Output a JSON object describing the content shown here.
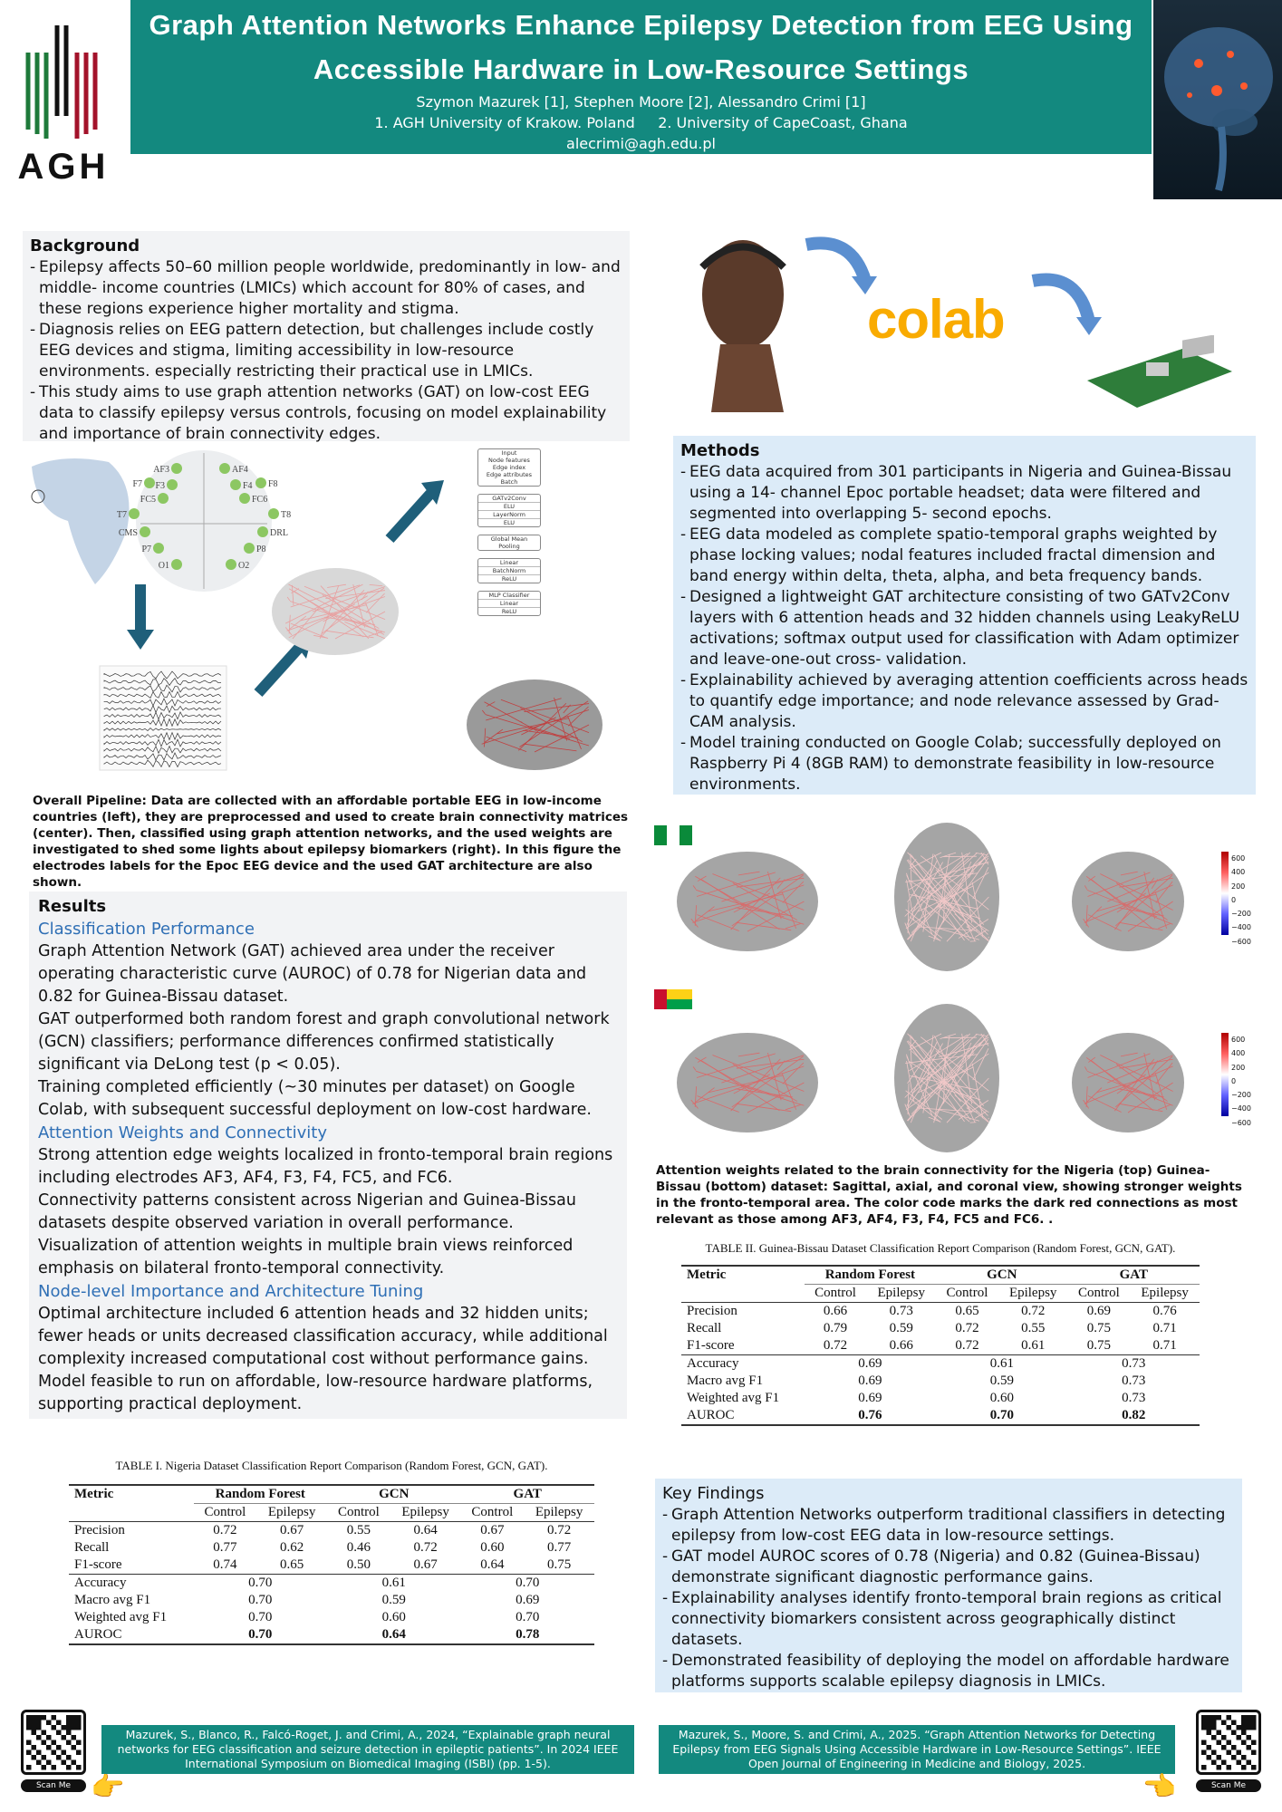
{
  "header": {
    "logo_text": "AGH",
    "title": "Graph Attention Networks Enhance Epilepsy Detection from EEG Using Accessible Hardware in Low-Resource Settings",
    "authors": "Szymon Mazurek [1], Stephen Moore [2], Alessandro Crimi [1]",
    "affiliation_1": "1. AGH University of Krakow. Poland",
    "affiliation_2": "2. University of CapeCoast, Ghana",
    "email": "alecrimi@agh.edu.pl",
    "accent_color": "#13897f"
  },
  "background": {
    "heading": "Background",
    "items": [
      "Epilepsy affects 50–60 million people worldwide, predominantly in low- and middle- income countries (LMICs) which account for 80% of cases, and these regions experience higher mortality and stigma.",
      "Diagnosis relies on EEG pattern detection, but challenges include costly EEG devices and stigma, limiting accessibility in low-resource environments. especially restricting their practical use in LMICs.",
      "This study aims to use graph attention networks (GAT) on low-cost EEG data to classify epilepsy versus controls, focusing on model explainability and importance of brain connectivity edges."
    ]
  },
  "pipeline": {
    "electrodes": [
      "AF3",
      "AF4",
      "F7",
      "F3",
      "F4",
      "F8",
      "FC5",
      "FC6",
      "T7",
      "T8",
      "CMS",
      "DRL",
      "P7",
      "P8",
      "O1",
      "O2"
    ],
    "architecture": [
      "Input",
      "Node features",
      "Edge index",
      "Edge attributes",
      "Batch",
      "GATv2Conv",
      "ELU",
      "LayerNorm",
      "ELU",
      "Global Mean",
      "Pooling",
      "Linear",
      "BatchNorm",
      "ReLU",
      "MLP Classifier",
      "Linear",
      "ReLU"
    ],
    "caption": "Overall Pipeline: Data are collected with an affordable portable EEG in low-income countries (left), they are preprocessed and  used to create brain connectivity matrices (center). Then, classified using graph attention networks, and the used weights are investigated to shed some lights about epilepsy biomarkers (right). In this figure the electrodes labels for the Epoc EEG device and the used GAT architecture are also shown."
  },
  "tools": {
    "colab_logo": "colab"
  },
  "methods": {
    "heading": "Methods",
    "items": [
      "EEG data acquired from 301 participants in Nigeria and Guinea-Bissau using a 14- channel Epoc portable headset; data were filtered and segmented into overlapping 5- second epochs.",
      "EEG data modeled as complete spatio-temporal graphs weighted by phase locking values; nodal features included fractal dimension and band energy within delta, theta, alpha, and beta frequency bands.",
      "Designed a lightweight GAT architecture consisting of two GATv2Conv layers with 6 attention heads and 32 hidden channels using LeakyReLU activations; softmax output used for classification with Adam optimizer and leave-one-out cross- validation.",
      "Explainability achieved by averaging attention coefficients across heads to quantify edge importance; and node relevance assessed by Grad-CAM analysis.",
      "Model training conducted on Google Colab; successfully deployed on Raspberry Pi 4 (8GB RAM) to demonstrate feasibility in low-resource environments."
    ]
  },
  "attention_figure": {
    "colorbar_ticks": [
      "600",
      "400",
      "200",
      "0",
      "−200",
      "−400",
      "−600"
    ],
    "caption": "Attention weights related to the brain connectivity for the Nigeria (top) Guinea-Bissau (bottom) dataset: Sagittal, axial, and coronal view, showing stronger weights in the fronto-temporal area. The color code marks the dark red connections as most relevant as those among AF3, AF4, F3, F4, FC5 and FC6. ."
  },
  "results": {
    "heading": "Results",
    "sections": [
      {
        "title": "Classification Performance",
        "paras": [
          "Graph Attention Network (GAT) achieved area under the receiver operating characteristic curve (AUROC) of 0.78 for Nigerian data and 0.82 for Guinea-Bissau dataset.",
          "GAT outperformed both random forest and graph convolutional network (GCN) classifiers; performance differences confirmed statistically significant via DeLong test (p < 0.05).",
          "Training completed efficiently (~30 minutes per dataset) on Google Colab, with subsequent successful deployment on low-cost hardware."
        ]
      },
      {
        "title": "Attention Weights and Connectivity",
        "paras": [
          "Strong attention edge weights localized in fronto-temporal brain regions including electrodes AF3, AF4, F3, F4, FC5, and FC6.",
          "Connectivity patterns consistent across Nigerian and Guinea-Bissau datasets despite observed variation in overall performance.",
          "Visualization of attention weights in multiple brain views reinforced emphasis on bilateral fronto-temporal connectivity."
        ]
      },
      {
        "title": "Node-level Importance and Architecture Tuning",
        "paras": [
          "Optimal architecture included 6 attention heads and 32 hidden units; fewer heads or units decreased classification accuracy, while additional complexity increased computational cost without performance gains.",
          "Model feasible to run on affordable, low-resource hardware platforms, supporting practical deployment."
        ]
      }
    ]
  },
  "table1": {
    "caption": "TABLE I. Nigeria Dataset Classification Report Comparison (Random Forest, GCN, GAT).",
    "metric_header": "Metric",
    "models": [
      "Random Forest",
      "GCN",
      "GAT"
    ],
    "classes": [
      "Control",
      "Epilepsy"
    ],
    "class_rows": [
      {
        "metric": "Precision",
        "values": [
          "0.72",
          "0.67",
          "0.55",
          "0.64",
          "0.67",
          "0.72"
        ]
      },
      {
        "metric": "Recall",
        "values": [
          "0.77",
          "0.62",
          "0.46",
          "0.72",
          "0.60",
          "0.77"
        ]
      },
      {
        "metric": "F1-score",
        "values": [
          "0.74",
          "0.65",
          "0.50",
          "0.67",
          "0.64",
          "0.75"
        ]
      }
    ],
    "summary_rows": [
      {
        "metric": "Accuracy",
        "values": [
          "0.70",
          "0.61",
          "0.70"
        ]
      },
      {
        "metric": "Macro avg F1",
        "values": [
          "0.70",
          "0.59",
          "0.69"
        ]
      },
      {
        "metric": "Weighted avg F1",
        "values": [
          "0.70",
          "0.60",
          "0.70"
        ]
      },
      {
        "metric": "AUROC",
        "values": [
          "0.70",
          "0.64",
          "0.78"
        ],
        "bold": true
      }
    ]
  },
  "table2": {
    "caption": "TABLE II. Guinea-Bissau Dataset Classification Report Comparison (Random Forest, GCN, GAT).",
    "metric_header": "Metric",
    "models": [
      "Random Forest",
      "GCN",
      "GAT"
    ],
    "classes": [
      "Control",
      "Epilepsy"
    ],
    "class_rows": [
      {
        "metric": "Precision",
        "values": [
          "0.66",
          "0.73",
          "0.65",
          "0.72",
          "0.69",
          "0.76"
        ]
      },
      {
        "metric": "Recall",
        "values": [
          "0.79",
          "0.59",
          "0.72",
          "0.55",
          "0.75",
          "0.71"
        ]
      },
      {
        "metric": "F1-score",
        "values": [
          "0.72",
          "0.66",
          "0.72",
          "0.61",
          "0.75",
          "0.71"
        ]
      }
    ],
    "summary_rows": [
      {
        "metric": "Accuracy",
        "values": [
          "0.69",
          "0.61",
          "0.73"
        ]
      },
      {
        "metric": "Macro avg F1",
        "values": [
          "0.69",
          "0.59",
          "0.73"
        ]
      },
      {
        "metric": "Weighted avg F1",
        "values": [
          "0.69",
          "0.60",
          "0.73"
        ]
      },
      {
        "metric": "AUROC",
        "values": [
          "0.76",
          "0.70",
          "0.82"
        ],
        "bold": true
      }
    ]
  },
  "key_findings": {
    "heading": "Key Findings",
    "items": [
      "Graph Attention Networks outperform traditional classifiers in detecting epilepsy from low-cost EEG data in low-resource settings.",
      "GAT model AUROC scores of 0.78 (Nigeria) and 0.82 (Guinea-Bissau) demonstrate significant diagnostic performance gains.",
      "Explainability analyses identify fronto-temporal brain regions as critical connectivity biomarkers consistent across geographically distinct datasets.",
      "Demonstrated feasibility of deploying the model on affordable hardware platforms supports scalable epilepsy diagnosis in LMICs."
    ]
  },
  "footer": {
    "scan_label": "Scan Me",
    "citation_left": "Mazurek, S., Blanco, R., Falcó-Roget, J. and Crimi, A., 2024, “Explainable graph neural networks for EEG classification and seizure detection in epileptic patients”. In 2024 IEEE International Symposium on Biomedical Imaging (ISBI) (pp. 1-5).",
    "citation_right": "Mazurek, S., Moore, S. and Crimi, A., 2025. “Graph Attention Networks for Detecting Epilepsy from EEG Signals Using Accessible Hardware in Low-Resource Settings”. IEEE Open Journal of Engineering in Medicine and Biology, 2025."
  }
}
